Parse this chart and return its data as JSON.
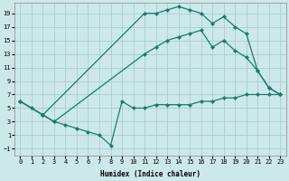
{
  "xlabel": "Humidex (Indice chaleur)",
  "bg_color": "#cce8ea",
  "grid_color": "#aacdd0",
  "line_color": "#1a7a6e",
  "xlim": [
    -0.5,
    23.5
  ],
  "ylim": [
    -2,
    20.5
  ],
  "xticks": [
    0,
    1,
    2,
    3,
    4,
    5,
    6,
    7,
    8,
    9,
    10,
    11,
    12,
    13,
    14,
    15,
    16,
    17,
    18,
    19,
    20,
    21,
    22,
    23
  ],
  "yticks": [
    -1,
    1,
    3,
    5,
    7,
    9,
    11,
    13,
    15,
    17,
    19
  ],
  "line_top_x": [
    0,
    2,
    11,
    12,
    13,
    14,
    15,
    16,
    17,
    18,
    19,
    20,
    21,
    22,
    23
  ],
  "line_top_y": [
    6,
    4,
    19,
    19,
    19.5,
    20,
    19.5,
    19,
    17.5,
    18.5,
    17,
    16,
    10.5,
    8,
    7
  ],
  "line_mid_x": [
    0,
    2,
    3,
    11,
    12,
    13,
    14,
    15,
    16,
    17,
    18,
    19,
    20,
    21,
    22,
    23
  ],
  "line_mid_y": [
    6,
    4,
    3,
    13,
    14,
    15,
    15.5,
    16,
    16.5,
    14,
    15,
    13.5,
    12.5,
    10.5,
    8,
    7
  ],
  "line_bot_x": [
    0,
    1,
    2,
    3,
    4,
    5,
    6,
    7,
    8,
    9,
    10,
    11,
    12,
    13,
    14,
    15,
    16,
    17,
    18,
    19,
    20,
    21,
    22,
    23
  ],
  "line_bot_y": [
    6,
    5,
    4,
    3,
    2.5,
    2,
    1.5,
    1,
    -0.5,
    6,
    5,
    5,
    5.5,
    5.5,
    5.5,
    5.5,
    6,
    6,
    6.5,
    6.5,
    7,
    7,
    7,
    7
  ]
}
